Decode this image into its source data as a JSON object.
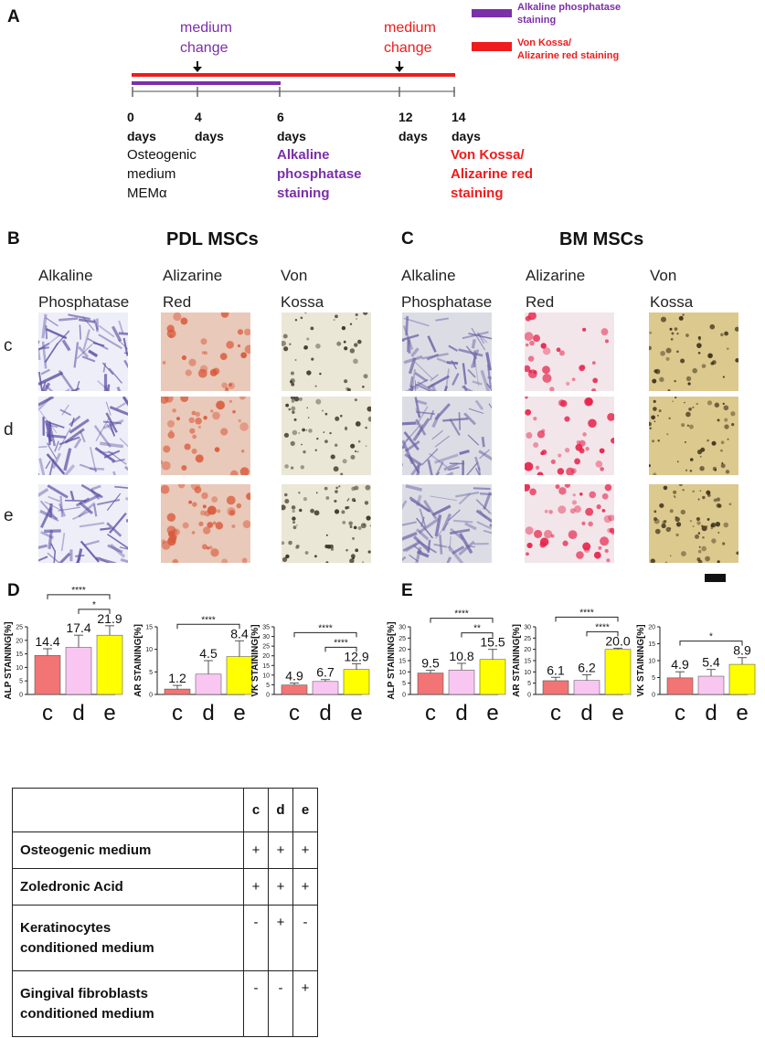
{
  "panel_letters": {
    "a": "A",
    "b": "B",
    "c": "C",
    "d": "D",
    "e": "E"
  },
  "timeline": {
    "medium_change_1": [
      "medium",
      "change"
    ],
    "medium_change_2": [
      "medium",
      "change"
    ],
    "legend": {
      "alp": [
        "Alkaline phosphatase",
        "staining"
      ],
      "vk": [
        "Von Kossa/",
        "Alizarine red staining"
      ],
      "alp_color": "#7b2fa8",
      "vk_color": "#ee1c1c"
    },
    "ticks": [
      {
        "num": "0",
        "unit": "days"
      },
      {
        "num": "4",
        "unit": "days"
      },
      {
        "num": "6",
        "unit": "days"
      },
      {
        "num": "12",
        "unit": "days"
      },
      {
        "num": "14",
        "unit": "days"
      }
    ],
    "start_desc": [
      "Osteogenic",
      "medium",
      "MEMα"
    ],
    "alp_desc": [
      "Alkaline",
      "phosphatase",
      "staining"
    ],
    "vk_desc": [
      "Von Kossa/",
      "Alizarine red",
      "staining"
    ]
  },
  "groups": {
    "pdl": {
      "title": "PDL MSCs",
      "columns": [
        [
          "Alkaline",
          "Phosphatase"
        ],
        [
          "Alizarine",
          "Red"
        ],
        [
          "Von",
          "Kossa"
        ]
      ]
    },
    "bm": {
      "title": "BM MSCs",
      "columns": [
        [
          "Alkaline",
          "Phosphatase"
        ],
        [
          "Alizarine",
          "Red"
        ],
        [
          "Von",
          "Kossa"
        ]
      ]
    }
  },
  "row_labels": [
    "c",
    "d",
    "e"
  ],
  "chart_data": [
    {
      "type": "bar",
      "panel": "D",
      "ylabel": "ALP STAINING[%]",
      "ylim": [
        0,
        25
      ],
      "yticks": [
        0,
        5,
        10,
        15,
        20,
        25
      ],
      "categories": [
        "c",
        "d",
        "e"
      ],
      "values": [
        14.4,
        17.4,
        21.9
      ],
      "value_labels": [
        "14.4",
        "17.4",
        "21.9"
      ],
      "errors": [
        2.5,
        4.5,
        3.5
      ],
      "colors": [
        "#f27474",
        "#f9c6f2",
        "#ffff00"
      ],
      "significance": [
        {
          "from": "c",
          "to": "e",
          "label": "****"
        },
        {
          "from": "d",
          "to": "e",
          "label": "*"
        }
      ]
    },
    {
      "type": "bar",
      "panel": "D",
      "ylabel": "AR STAINING[%]",
      "ylim": [
        0,
        15
      ],
      "yticks": [
        0,
        5,
        10,
        15
      ],
      "categories": [
        "c",
        "d",
        "e"
      ],
      "values": [
        1.2,
        4.5,
        8.4
      ],
      "value_labels": [
        "1.2",
        "4.5",
        "8.4"
      ],
      "errors": [
        0.8,
        3.0,
        3.5
      ],
      "colors": [
        "#f27474",
        "#f9c6f2",
        "#ffff00"
      ],
      "significance": [
        {
          "from": "c",
          "to": "e",
          "label": "****"
        }
      ]
    },
    {
      "type": "bar",
      "panel": "D",
      "ylabel": "VK STAINING[%]",
      "ylim": [
        0,
        35
      ],
      "yticks": [
        0,
        5,
        10,
        15,
        20,
        25,
        30,
        35
      ],
      "categories": [
        "c",
        "d",
        "e"
      ],
      "values": [
        4.9,
        6.7,
        12.9
      ],
      "value_labels": [
        "4.9",
        "6.7",
        "12.9"
      ],
      "errors": [
        1.0,
        1.0,
        3.0
      ],
      "colors": [
        "#f27474",
        "#f9c6f2",
        "#ffff00"
      ],
      "significance": [
        {
          "from": "c",
          "to": "e",
          "label": "****"
        },
        {
          "from": "d",
          "to": "e",
          "label": "****"
        }
      ]
    },
    {
      "type": "bar",
      "panel": "E",
      "ylabel": "ALP STAINING[%]",
      "ylim": [
        0,
        30
      ],
      "yticks": [
        0,
        5,
        10,
        15,
        20,
        25,
        30
      ],
      "categories": [
        "c",
        "d",
        "e"
      ],
      "values": [
        9.5,
        10.8,
        15.5
      ],
      "value_labels": [
        "9.5",
        "10.8",
        "15.5"
      ],
      "errors": [
        1.2,
        3.0,
        4.5
      ],
      "colors": [
        "#f27474",
        "#f9c6f2",
        "#ffff00"
      ],
      "significance": [
        {
          "from": "c",
          "to": "e",
          "label": "****"
        },
        {
          "from": "d",
          "to": "e",
          "label": "**"
        }
      ]
    },
    {
      "type": "bar",
      "panel": "E",
      "ylabel": "AR STAINING[%]",
      "ylim": [
        0,
        30
      ],
      "yticks": [
        0,
        5,
        10,
        15,
        20,
        25,
        30
      ],
      "categories": [
        "c",
        "d",
        "e"
      ],
      "values": [
        6.1,
        6.2,
        20.0
      ],
      "value_labels": [
        "6.1",
        "6.2",
        "20.0"
      ],
      "errors": [
        1.5,
        2.5,
        0.5
      ],
      "colors": [
        "#f27474",
        "#f9c6f2",
        "#ffff00"
      ],
      "significance": [
        {
          "from": "c",
          "to": "e",
          "label": "****"
        },
        {
          "from": "d",
          "to": "e",
          "label": "****"
        }
      ]
    },
    {
      "type": "bar",
      "panel": "E",
      "ylabel": "VK STAINING[%]",
      "ylim": [
        0,
        20
      ],
      "yticks": [
        0,
        5,
        10,
        15,
        20
      ],
      "categories": [
        "c",
        "d",
        "e"
      ],
      "values": [
        4.9,
        5.4,
        8.9
      ],
      "value_labels": [
        "4.9",
        "5.4",
        "8.9"
      ],
      "errors": [
        1.8,
        2.0,
        2.0
      ],
      "colors": [
        "#f27474",
        "#f9c6f2",
        "#ffff00"
      ],
      "significance": [
        {
          "from": "c",
          "to": "e",
          "label": "*"
        }
      ]
    }
  ],
  "conditions_table": {
    "headers": [
      "",
      "c",
      "d",
      "e"
    ],
    "rows": [
      {
        "label": [
          "Osteogenic medium"
        ],
        "values": [
          "+",
          "+",
          "+"
        ]
      },
      {
        "label": [
          "Zoledronic Acid"
        ],
        "values": [
          "+",
          "+",
          "+"
        ]
      },
      {
        "label": [
          "Keratinocytes",
          "conditioned medium"
        ],
        "values": [
          "-",
          "+",
          "-"
        ]
      },
      {
        "label": [
          "Gingival fibroblasts",
          "conditioned medium"
        ],
        "values": [
          "-",
          "-",
          "+"
        ]
      }
    ]
  },
  "stain_colors": {
    "pdl_alp": "#5b4fa3",
    "pdl_ar": "#d9583a",
    "pdl_vk": "#3a3224",
    "bm_alp": "#6e64a8",
    "bm_ar": "#e8224a",
    "bm_vk": "#3b2f18"
  }
}
